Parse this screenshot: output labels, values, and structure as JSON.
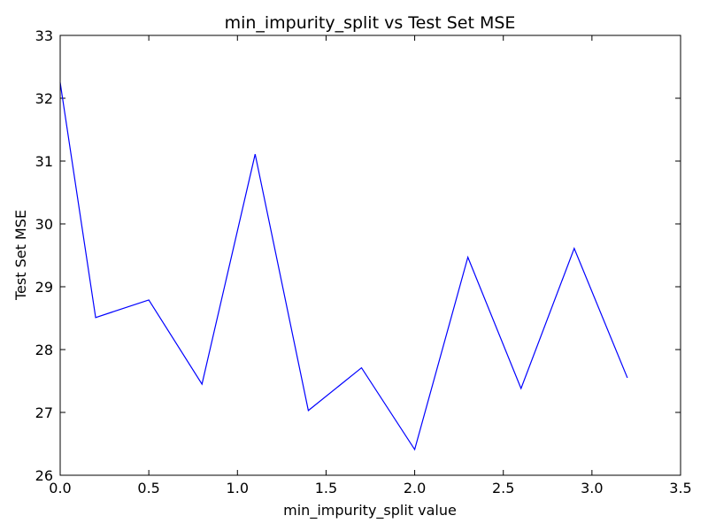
{
  "chart_data": {
    "type": "line",
    "title": "min_impurity_split vs Test Set MSE",
    "xlabel": "min_impurity_split value",
    "ylabel": "Test Set MSE",
    "xlim": [
      0.0,
      3.5
    ],
    "ylim": [
      26,
      33
    ],
    "xticks": [
      0.0,
      0.5,
      1.0,
      1.5,
      2.0,
      2.5,
      3.0,
      3.5
    ],
    "xtick_labels": [
      "0.0",
      "0.5",
      "1.0",
      "1.5",
      "2.0",
      "2.5",
      "3.0",
      "3.5"
    ],
    "yticks": [
      26,
      27,
      28,
      29,
      30,
      31,
      32,
      33
    ],
    "ytick_labels": [
      "26",
      "27",
      "28",
      "29",
      "30",
      "31",
      "32",
      "33"
    ],
    "grid": false,
    "series": [
      {
        "color": "#0000ff",
        "x": [
          0.0,
          0.2,
          0.5,
          0.8,
          1.1,
          1.4,
          1.7,
          2.0,
          2.3,
          2.6,
          2.9,
          3.2
        ],
        "y": [
          32.25,
          28.51,
          28.79,
          27.45,
          31.11,
          27.03,
          27.71,
          26.41,
          29.47,
          27.38,
          29.61,
          27.55
        ]
      }
    ]
  }
}
